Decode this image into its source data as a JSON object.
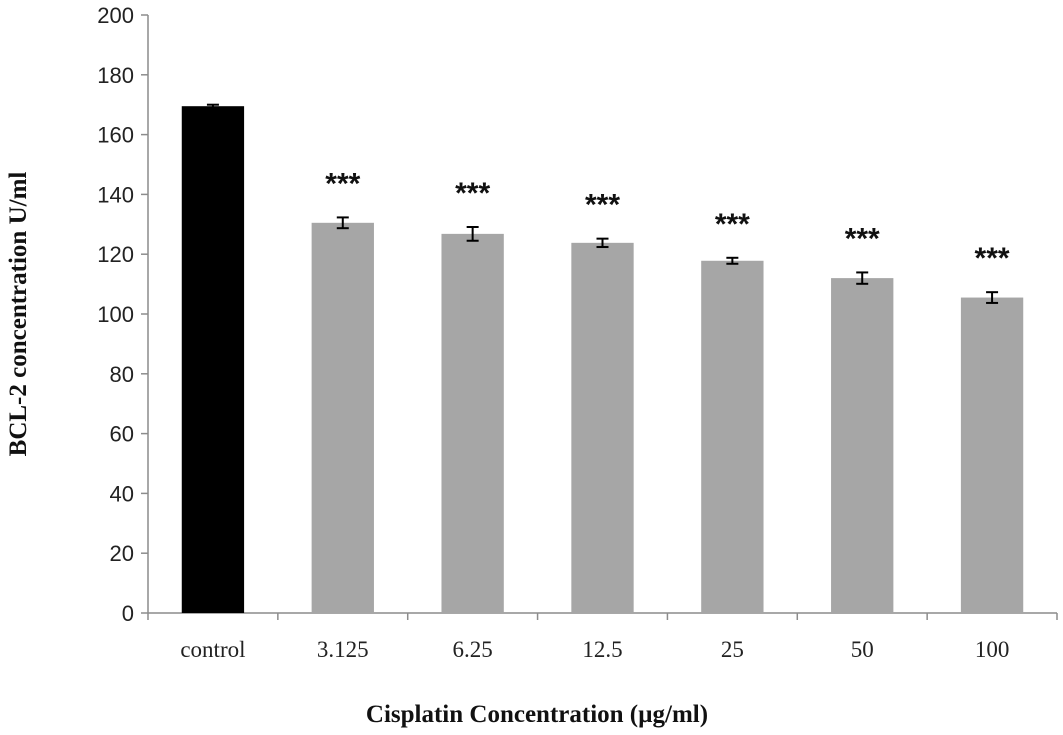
{
  "chart_data": {
    "type": "bar",
    "categories": [
      "control",
      "3.125",
      "6.25",
      "12.5",
      "25",
      "50",
      "100"
    ],
    "values": [
      169.5,
      130.5,
      126.8,
      123.8,
      117.8,
      112.0,
      105.5
    ],
    "errors": [
      0.5,
      1.8,
      2.3,
      1.4,
      1.0,
      1.9,
      1.8
    ],
    "annotations": [
      "",
      "***",
      "***",
      "***",
      "***",
      "***",
      "***"
    ],
    "bar_colors": [
      "#000000",
      "#a6a6a6",
      "#a6a6a6",
      "#a6a6a6",
      "#a6a6a6",
      "#a6a6a6",
      "#a6a6a6"
    ],
    "xlabel": "Cisplatin Concentration (µg/ml)",
    "ylabel": "BCL-2 concentration U/ml",
    "ylim": [
      0,
      200
    ],
    "yticks": [
      0,
      20,
      40,
      60,
      80,
      100,
      120,
      140,
      160,
      180,
      200
    ],
    "grid": false,
    "legend": "none"
  }
}
